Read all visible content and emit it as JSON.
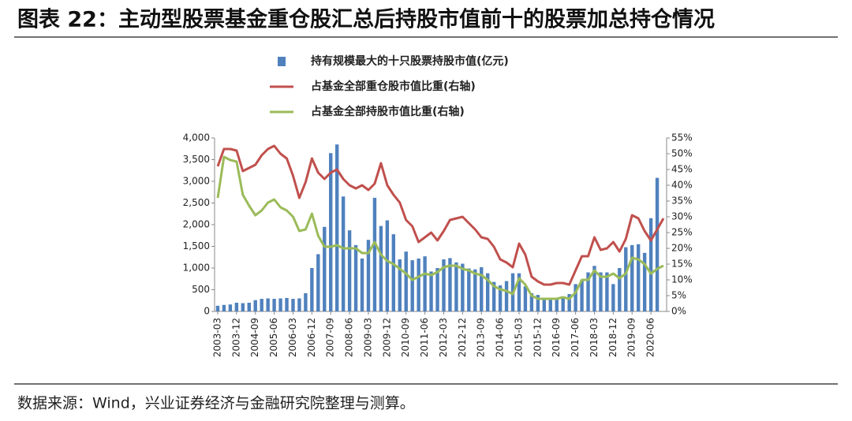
{
  "header": {
    "title": "图表 22：主动型股票基金重仓股汇总后持股市值前十的股票加总持仓情况"
  },
  "chart_data": {
    "type": "bar_line",
    "categories": [
      "2003-03",
      null,
      null,
      "2003-12",
      null,
      null,
      "2004-09",
      null,
      null,
      "2005-06",
      null,
      null,
      "2006-03",
      null,
      null,
      "2006-12",
      null,
      null,
      "2007-09",
      null,
      null,
      "2008-06",
      null,
      null,
      "2009-03",
      null,
      null,
      "2009-12",
      null,
      null,
      "2010-09",
      null,
      null,
      "2011-06",
      null,
      null,
      "2012-03",
      null,
      null,
      "2012-12",
      null,
      null,
      "2013-09",
      null,
      null,
      "2014-06",
      null,
      null,
      "2015-03",
      null,
      null,
      "2015-12",
      null,
      null,
      "2016-09",
      null,
      null,
      "2017-06",
      null,
      null,
      "2018-03",
      null,
      null,
      "2018-12",
      null,
      null,
      "2019-09",
      null,
      null,
      "2020-06",
      null,
      null
    ],
    "series": [
      {
        "name": "持有规模最大的十只股票持股市值(亿元)",
        "kind": "bar",
        "color": "#4f81bd",
        "values": [
          130,
          150,
          160,
          200,
          190,
          200,
          260,
          290,
          300,
          290,
          300,
          310,
          290,
          300,
          420,
          1000,
          1320,
          1950,
          3650,
          3850,
          2650,
          1870,
          1530,
          1220,
          1650,
          2620,
          1970,
          2100,
          1780,
          1200,
          1380,
          1180,
          1220,
          1270,
          920,
          1000,
          1200,
          1230,
          1130,
          1100,
          990,
          970,
          1020,
          880,
          680,
          600,
          700,
          880,
          880,
          580,
          420,
          380,
          280,
          270,
          280,
          320,
          400,
          630,
          730,
          900,
          1050,
          900,
          900,
          630,
          1000,
          1480,
          1530,
          1550,
          1350,
          2150,
          3080,
          null
        ]
      },
      {
        "name": "占基金全部重仓股市值比重(右轴)",
        "kind": "line",
        "axis": "y2",
        "color": "#c0504d",
        "values": [
          46,
          51.5,
          51.5,
          51,
          44.5,
          45.5,
          46.5,
          49.5,
          51.5,
          52.5,
          50,
          48.5,
          43,
          36,
          41,
          48.5,
          44,
          42,
          44,
          45,
          42,
          40,
          39,
          40,
          38.5,
          40.5,
          47,
          40,
          37,
          34.5,
          29,
          27,
          22,
          23.5,
          25,
          22.5,
          25.5,
          29,
          29.5,
          30,
          28,
          26,
          23.5,
          23,
          20.5,
          16.5,
          15.5,
          14,
          21.5,
          18,
          11,
          9.5,
          8.5,
          8.5,
          9,
          9,
          8.5,
          13,
          17.5,
          17.5,
          23.5,
          19.5,
          20,
          22,
          19,
          23,
          30.5,
          29.5,
          25.5,
          22.5,
          26,
          29.5
        ]
      },
      {
        "name": "占基金全部持股市值比重(右轴)",
        "kind": "line",
        "axis": "y2",
        "color": "#9bbb59",
        "values": [
          36,
          49,
          48,
          47.5,
          37,
          33.5,
          30.5,
          32,
          34.5,
          35.5,
          33,
          32,
          30,
          25.5,
          26,
          31,
          24,
          20.5,
          20.5,
          21,
          20,
          20,
          20,
          18.5,
          18.5,
          22,
          18,
          16,
          15,
          13.5,
          12,
          10,
          11,
          12,
          11.5,
          12.5,
          14,
          14.5,
          14.5,
          13.5,
          13,
          12,
          11.5,
          10,
          8,
          7,
          6.5,
          5.5,
          10.5,
          8.5,
          5,
          4,
          4,
          4,
          4,
          4.5,
          4,
          6,
          10,
          10,
          13,
          11,
          11,
          12,
          10.5,
          12,
          17,
          16.5,
          15,
          12,
          13.5,
          14.5
        ]
      }
    ],
    "ylim": [
      0,
      4000
    ],
    "yticks": [
      0,
      {
        "value": 500,
        "label": "500"
      },
      {
        "value": 1000,
        "label": "1,000"
      },
      {
        "value": 1500,
        "label": "1,500"
      },
      {
        "value": 2000,
        "label": "2,000"
      },
      {
        "value": 2500,
        "label": "2,500"
      },
      {
        "value": 3000,
        "label": "3,000"
      },
      {
        "value": 3500,
        "label": "3,500"
      },
      {
        "value": 4000,
        "label": "4,000"
      }
    ],
    "y2lim": [
      0,
      55
    ],
    "y2ticks": [
      {
        "value": 0,
        "label": "0%"
      },
      {
        "value": 5,
        "label": "5%"
      },
      {
        "value": 10,
        "label": "10%"
      },
      {
        "value": 15,
        "label": "15%"
      },
      {
        "value": 20,
        "label": "20%"
      },
      {
        "value": 25,
        "label": "25%"
      },
      {
        "value": 30,
        "label": "30%"
      },
      {
        "value": 35,
        "label": "35%"
      },
      {
        "value": 40,
        "label": "40%"
      },
      {
        "value": 45,
        "label": "45%"
      },
      {
        "value": 50,
        "label": "50%"
      },
      {
        "value": 55,
        "label": "55%"
      }
    ],
    "legend": "top"
  },
  "footer": {
    "source": "数据来源：Wind，兴业证券经济与金融研究院整理与测算。"
  }
}
